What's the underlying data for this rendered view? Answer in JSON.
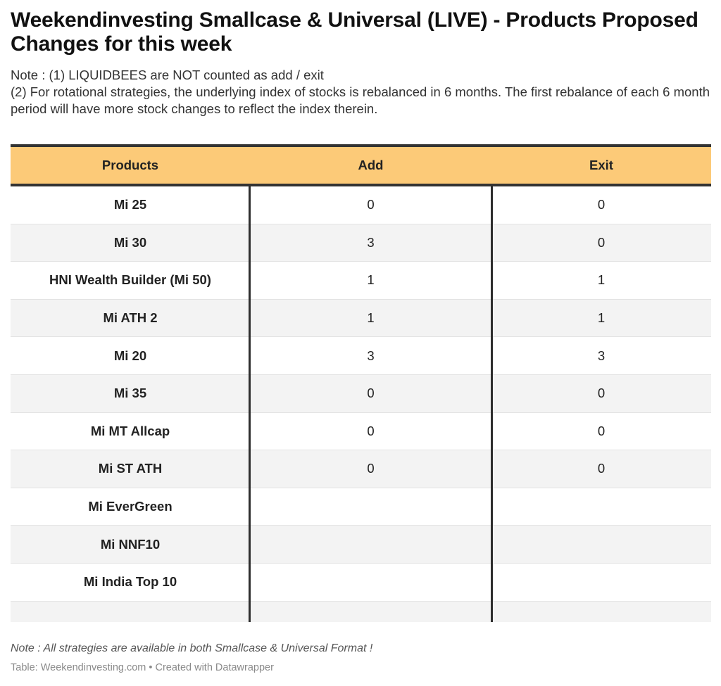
{
  "title": "Weekendinvesting Smallcase & Universal (LIVE) - Products Proposed Changes for this week",
  "notes": [
    "Note : (1) LIQUIDBEES are NOT counted as add / exit",
    "(2) For rotational strategies, the underlying index of stocks is rebalanced in 6 months. The first rebalance of each 6 month period will have more stock changes to reflect the index therein."
  ],
  "table": {
    "header_color": "#fcca78",
    "columns": [
      "Products",
      "Add",
      "Exit"
    ],
    "rows": [
      {
        "product": "Mi 25",
        "add": "0",
        "exit": "0"
      },
      {
        "product": "Mi 30",
        "add": "3",
        "exit": "0"
      },
      {
        "product": "HNI Wealth Builder (Mi 50)",
        "add": "1",
        "exit": "1"
      },
      {
        "product": "Mi ATH 2",
        "add": "1",
        "exit": "1"
      },
      {
        "product": "Mi 20",
        "add": "3",
        "exit": "3"
      },
      {
        "product": "Mi 35",
        "add": "0",
        "exit": "0"
      },
      {
        "product": "Mi MT Allcap",
        "add": "0",
        "exit": "0"
      },
      {
        "product": "Mi ST ATH",
        "add": "0",
        "exit": "0"
      },
      {
        "product": "Mi EverGreen",
        "add": "",
        "exit": ""
      },
      {
        "product": "Mi NNF10",
        "add": "",
        "exit": ""
      },
      {
        "product": "Mi India Top 10",
        "add": "",
        "exit": ""
      },
      {
        "product": "",
        "add": "",
        "exit": ""
      }
    ]
  },
  "footer": {
    "note": "Note : All strategies are available in both Smallcase & Universal Format !",
    "credit": "Table: Weekendinvesting.com • Created with Datawrapper"
  }
}
